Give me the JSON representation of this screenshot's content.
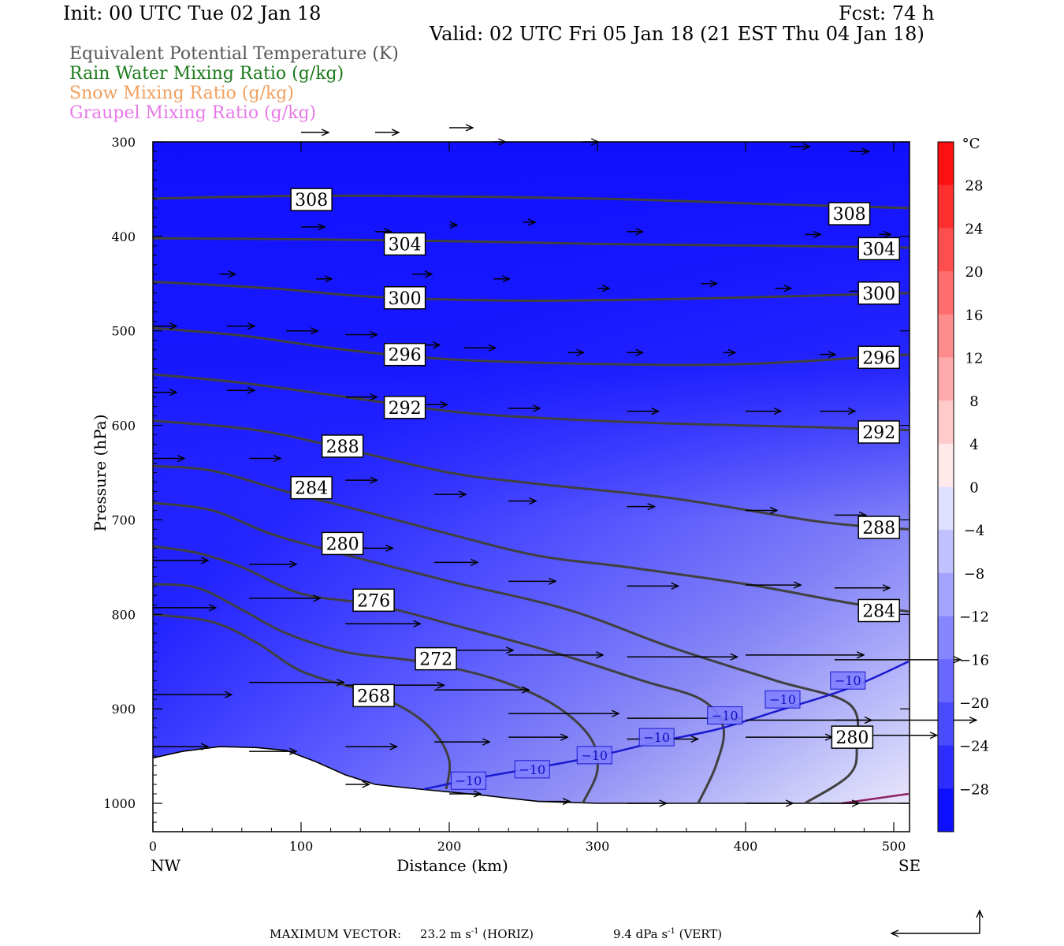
{
  "header": {
    "init": "Init: 00 UTC Tue 02 Jan 18",
    "fcst": "Fcst:   74 h",
    "valid": "Valid: 02 UTC Fri 05 Jan 18 (21 EST Thu 04 Jan 18)"
  },
  "legend": [
    {
      "label": "Equivalent Potential Temperature (K)",
      "color": "#555555"
    },
    {
      "label": "Rain Water Mixing Ratio (g/kg)",
      "color": "#1a7a1a"
    },
    {
      "label": "Snow Mixing Ratio (g/kg)",
      "color": "#f0a060"
    },
    {
      "label": "Graupel Mixing Ratio (g/kg)",
      "color": "#e87ae8"
    }
  ],
  "footer": {
    "max_vector": "MAXIMUM VECTOR:",
    "horiz_value": "23.2 m s",
    "horiz_exp": "-1",
    "horiz_unit": "(HORIZ)",
    "vert_value": "9.4 dPa s",
    "vert_exp": "-1",
    "vert_unit": "(VERT)"
  },
  "chart_data": {
    "type": "cross-section",
    "xlabel": "Distance (km)",
    "ylabel": "Pressure (hPa)",
    "xlim": [
      0,
      510
    ],
    "ylim": [
      1030,
      300
    ],
    "xticks": [
      0,
      100,
      200,
      300,
      400,
      500
    ],
    "yticks": [
      300,
      400,
      500,
      600,
      700,
      800,
      900,
      1000
    ],
    "x_endpoints": {
      "left": "NW",
      "right": "SE"
    },
    "colorbar": {
      "unit": "°C",
      "range": [
        -32,
        32
      ],
      "step": 4,
      "labels": [
        28,
        24,
        20,
        16,
        12,
        8,
        4,
        0,
        -4,
        -8,
        -12,
        -16,
        -20,
        -24,
        -28
      ]
    },
    "terrain": [
      [
        0,
        952
      ],
      [
        20,
        945
      ],
      [
        45,
        940
      ],
      [
        70,
        941
      ],
      [
        90,
        944
      ],
      [
        110,
        956
      ],
      [
        130,
        970
      ],
      [
        150,
        980
      ],
      [
        180,
        985
      ],
      [
        220,
        991
      ],
      [
        260,
        998
      ],
      [
        300,
        1000
      ],
      [
        510,
        1000
      ]
    ],
    "theta_e_contours": [
      {
        "value": 308,
        "points": [
          [
            0,
            360
          ],
          [
            60,
            358
          ],
          [
            150,
            357
          ],
          [
            300,
            360
          ],
          [
            420,
            366
          ],
          [
            510,
            370
          ]
        ],
        "labels": [
          [
            107,
            361
          ],
          [
            470,
            376
          ]
        ]
      },
      {
        "value": 304,
        "points": [
          [
            0,
            402
          ],
          [
            100,
            403
          ],
          [
            200,
            405
          ],
          [
            300,
            408
          ],
          [
            420,
            410
          ],
          [
            510,
            412
          ]
        ],
        "labels": [
          [
            170,
            408
          ],
          [
            490,
            413
          ]
        ]
      },
      {
        "value": 300,
        "points": [
          [
            0,
            448
          ],
          [
            80,
            455
          ],
          [
            150,
            464
          ],
          [
            250,
            468
          ],
          [
            360,
            466
          ],
          [
            440,
            463
          ],
          [
            510,
            460
          ]
        ],
        "labels": [
          [
            170,
            465
          ],
          [
            490,
            460
          ]
        ]
      },
      {
        "value": 296,
        "points": [
          [
            0,
            497
          ],
          [
            60,
            505
          ],
          [
            130,
            520
          ],
          [
            200,
            530
          ],
          [
            300,
            535
          ],
          [
            400,
            535
          ],
          [
            510,
            525
          ]
        ],
        "labels": [
          [
            170,
            525
          ],
          [
            490,
            528
          ]
        ]
      },
      {
        "value": 292,
        "points": [
          [
            0,
            546
          ],
          [
            60,
            555
          ],
          [
            130,
            570
          ],
          [
            200,
            585
          ],
          [
            260,
            592
          ],
          [
            350,
            598
          ],
          [
            450,
            602
          ],
          [
            510,
            605
          ]
        ],
        "labels": [
          [
            170,
            581
          ],
          [
            490,
            607
          ]
        ]
      },
      {
        "value": 288,
        "points": [
          [
            0,
            595
          ],
          [
            70,
            605
          ],
          [
            130,
            625
          ],
          [
            200,
            650
          ],
          [
            260,
            662
          ],
          [
            350,
            677
          ],
          [
            450,
            702
          ],
          [
            510,
            710
          ]
        ],
        "labels": [
          [
            128,
            622
          ],
          [
            490,
            708
          ]
        ]
      },
      {
        "value": 284,
        "points": [
          [
            0,
            643
          ],
          [
            40,
            648
          ],
          [
            90,
            670
          ],
          [
            140,
            690
          ],
          [
            200,
            715
          ],
          [
            260,
            738
          ],
          [
            320,
            750
          ],
          [
            400,
            768
          ],
          [
            470,
            788
          ],
          [
            510,
            797
          ]
        ],
        "labels": [
          [
            107,
            666
          ],
          [
            490,
            796
          ]
        ]
      },
      {
        "value": 280,
        "points": [
          [
            0,
            682
          ],
          [
            40,
            690
          ],
          [
            80,
            715
          ],
          [
            130,
            737
          ],
          [
            200,
            765
          ],
          [
            280,
            795
          ],
          [
            350,
            835
          ],
          [
            420,
            870
          ],
          [
            470,
            895
          ],
          [
            475,
            940
          ],
          [
            470,
            970
          ],
          [
            440,
            1000
          ]
        ],
        "labels": [
          [
            128,
            725
          ],
          [
            472,
            930
          ]
        ]
      },
      {
        "value": 276,
        "points": [
          [
            0,
            728
          ],
          [
            30,
            735
          ],
          [
            60,
            750
          ],
          [
            100,
            778
          ],
          [
            150,
            790
          ],
          [
            200,
            810
          ],
          [
            270,
            840
          ],
          [
            330,
            870
          ],
          [
            370,
            890
          ],
          [
            385,
            920
          ],
          [
            380,
            960
          ],
          [
            368,
            1000
          ]
        ],
        "labels": [
          [
            149,
            785
          ]
        ]
      },
      {
        "value": 272,
        "points": [
          [
            0,
            768
          ],
          [
            30,
            772
          ],
          [
            60,
            795
          ],
          [
            90,
            820
          ],
          [
            130,
            840
          ],
          [
            180,
            850
          ],
          [
            230,
            868
          ],
          [
            270,
            895
          ],
          [
            295,
            930
          ],
          [
            300,
            965
          ],
          [
            290,
            1000
          ]
        ],
        "labels": [
          [
            191,
            847
          ]
        ]
      },
      {
        "value": 268,
        "points": [
          [
            0,
            800
          ],
          [
            40,
            808
          ],
          [
            70,
            830
          ],
          [
            100,
            860
          ],
          [
            140,
            880
          ],
          [
            170,
            900
          ],
          [
            190,
            925
          ],
          [
            200,
            955
          ],
          [
            198,
            985
          ]
        ],
        "labels": [
          [
            149,
            886
          ]
        ]
      }
    ],
    "temperature_contours": [
      {
        "value": -10,
        "points": [
          [
            183,
            985
          ],
          [
            220,
            973
          ],
          [
            260,
            962
          ],
          [
            300,
            950
          ],
          [
            340,
            935
          ],
          [
            380,
            922
          ],
          [
            420,
            903
          ],
          [
            470,
            878
          ],
          [
            510,
            850
          ]
        ],
        "labels": [
          [
            213,
            976
          ],
          [
            256,
            964
          ],
          [
            298,
            949
          ],
          [
            340,
            930
          ],
          [
            386,
            907
          ],
          [
            425,
            890
          ],
          [
            469,
            870
          ]
        ]
      }
    ],
    "graupel_contours": [
      {
        "value": 0,
        "points": [
          [
            465,
            1000
          ],
          [
            510,
            990
          ]
        ],
        "labels": []
      }
    ],
    "wind_vectors": [
      [
        100,
        290,
        35,
        0
      ],
      [
        150,
        290,
        30,
        0
      ],
      [
        200,
        285,
        30,
        0
      ],
      [
        230,
        300,
        15,
        0
      ],
      [
        290,
        300,
        20,
        0
      ],
      [
        430,
        305,
        25,
        0
      ],
      [
        470,
        310,
        25,
        0
      ],
      [
        100,
        390,
        30,
        0
      ],
      [
        150,
        395,
        20,
        0
      ],
      [
        200,
        388,
        10,
        0
      ],
      [
        250,
        385,
        15,
        0
      ],
      [
        320,
        395,
        20,
        0
      ],
      [
        440,
        398,
        20,
        0
      ],
      [
        490,
        398,
        15,
        0
      ],
      [
        45,
        440,
        20,
        0
      ],
      [
        110,
        445,
        20,
        0
      ],
      [
        175,
        440,
        25,
        0
      ],
      [
        230,
        445,
        20,
        0
      ],
      [
        300,
        455,
        15,
        0
      ],
      [
        370,
        450,
        20,
        0
      ],
      [
        420,
        455,
        20,
        0
      ],
      [
        470,
        458,
        20,
        0
      ],
      [
        0,
        495,
        30,
        0
      ],
      [
        50,
        495,
        35,
        0
      ],
      [
        90,
        500,
        40,
        0
      ],
      [
        130,
        504,
        40,
        0
      ],
      [
        175,
        515,
        35,
        0
      ],
      [
        210,
        518,
        40,
        0
      ],
      [
        280,
        523,
        20,
        0
      ],
      [
        320,
        523,
        20,
        0
      ],
      [
        385,
        523,
        15,
        0
      ],
      [
        450,
        525,
        20,
        0
      ],
      [
        0,
        565,
        30,
        0
      ],
      [
        50,
        563,
        35,
        0
      ],
      [
        130,
        570,
        40,
        0
      ],
      [
        180,
        578,
        35,
        0
      ],
      [
        240,
        582,
        40,
        0
      ],
      [
        320,
        585,
        40,
        0
      ],
      [
        400,
        585,
        45,
        0
      ],
      [
        450,
        585,
        45,
        0
      ],
      [
        0,
        635,
        40,
        0
      ],
      [
        65,
        635,
        40,
        0
      ],
      [
        130,
        658,
        40,
        0
      ],
      [
        190,
        673,
        40,
        0
      ],
      [
        240,
        680,
        35,
        0
      ],
      [
        320,
        686,
        35,
        0
      ],
      [
        400,
        690,
        40,
        0
      ],
      [
        460,
        695,
        40,
        0
      ],
      [
        0,
        743,
        70,
        0
      ],
      [
        65,
        747,
        60,
        0
      ],
      [
        130,
        730,
        60,
        0
      ],
      [
        190,
        745,
        55,
        0
      ],
      [
        240,
        765,
        60,
        0
      ],
      [
        320,
        770,
        65,
        0
      ],
      [
        400,
        769,
        70,
        0
      ],
      [
        460,
        772,
        70,
        0
      ],
      [
        0,
        793,
        80,
        0
      ],
      [
        65,
        783,
        90,
        0
      ],
      [
        130,
        810,
        95,
        0
      ],
      [
        190,
        838,
        100,
        0
      ],
      [
        240,
        843,
        120,
        0
      ],
      [
        320,
        845,
        140,
        0
      ],
      [
        400,
        843,
        150,
        0
      ],
      [
        460,
        848,
        160,
        0
      ],
      [
        0,
        885,
        100,
        0
      ],
      [
        65,
        872,
        120,
        0
      ],
      [
        130,
        875,
        125,
        0
      ],
      [
        190,
        880,
        120,
        0
      ],
      [
        240,
        905,
        140,
        0
      ],
      [
        320,
        910,
        145,
        0
      ],
      [
        400,
        912,
        160,
        0
      ],
      [
        460,
        912,
        180,
        0
      ],
      [
        0,
        940,
        70,
        0
      ],
      [
        65,
        945,
        60,
        0
      ],
      [
        130,
        940,
        65,
        0
      ],
      [
        190,
        935,
        70,
        0
      ],
      [
        240,
        930,
        75,
        0
      ],
      [
        320,
        932,
        90,
        0
      ],
      [
        400,
        930,
        110,
        0
      ],
      [
        460,
        928,
        130,
        0
      ],
      [
        130,
        980,
        30,
        0
      ],
      [
        200,
        990,
        40,
        0
      ],
      [
        260,
        998,
        40,
        0
      ],
      [
        320,
        1000,
        50,
        0
      ],
      [
        400,
        1000,
        60,
        0
      ],
      [
        450,
        1000,
        50,
        0
      ]
    ]
  }
}
